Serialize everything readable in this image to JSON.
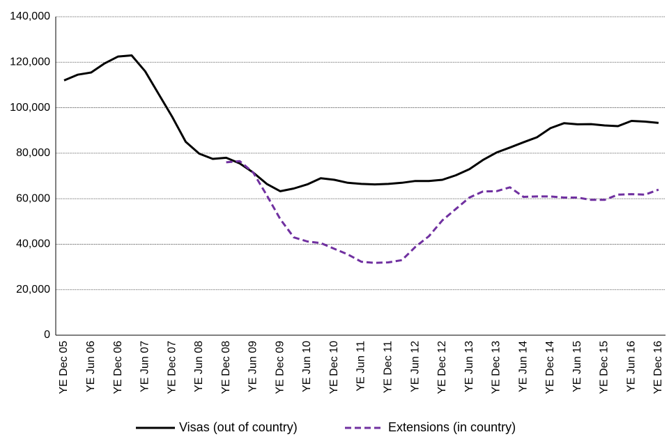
{
  "chart_data": {
    "type": "line",
    "categories": [
      "YE Dec 05",
      null,
      "YE Jun 06",
      null,
      "YE Dec 06",
      null,
      "YE Jun 07",
      null,
      "YE Dec 07",
      null,
      "YE Jun 08",
      null,
      "YE Dec 08",
      null,
      "YE Jun 09",
      null,
      "YE Dec 09",
      null,
      "YE Jun 10",
      null,
      "YE Dec 10",
      null,
      "YE Jun 11",
      null,
      "YE Dec 11",
      null,
      "YE Jun 12",
      null,
      "YE Dec 12",
      null,
      "YE Jun 13",
      null,
      "YE Dec 13",
      null,
      "YE Jun 14",
      null,
      "YE Dec 14",
      null,
      "YE Jun 15",
      null,
      "YE Dec 15",
      null,
      "YE Jun 16",
      null,
      "YE Dec 16"
    ],
    "series": [
      {
        "name": "Visas (out of country)",
        "color": "#000000",
        "dashed": false,
        "values": [
          112000,
          114500,
          115500,
          119500,
          122500,
          123000,
          116000,
          106000,
          96000,
          85000,
          79800,
          77500,
          78000,
          75500,
          71500,
          66500,
          63300,
          64500,
          66300,
          69000,
          68300,
          67000,
          66500,
          66300,
          66500,
          67000,
          67800,
          67800,
          68300,
          70300,
          73000,
          77000,
          80300,
          82500,
          84800,
          87000,
          91000,
          93200,
          92700,
          92800,
          92200,
          91900,
          94200,
          93900,
          93300
        ]
      },
      {
        "name": "Extensions (in country)",
        "color": "#7030a0",
        "dashed": true,
        "values": [
          null,
          null,
          null,
          null,
          null,
          null,
          null,
          null,
          null,
          null,
          null,
          null,
          76000,
          76500,
          71500,
          61500,
          51000,
          43000,
          41200,
          40500,
          38000,
          35500,
          32300,
          31800,
          32000,
          33000,
          38800,
          43500,
          50500,
          55500,
          60500,
          63200,
          63300,
          65000,
          60800,
          61000,
          61000,
          60500,
          60500,
          59500,
          59500,
          61800,
          62000,
          61800,
          64000
        ]
      }
    ],
    "ylim": [
      0,
      140000
    ],
    "yticks": [
      0,
      {
        "value": 20000,
        "label": "20,000"
      },
      {
        "value": 40000,
        "label": "40,000"
      },
      {
        "value": 60000,
        "label": "60,000"
      },
      {
        "value": 80000,
        "label": "80,000"
      },
      {
        "value": 100000,
        "label": "100,000"
      },
      {
        "value": 120000,
        "label": "120,000"
      },
      {
        "value": 140000,
        "label": "140,000"
      }
    ],
    "grid": true,
    "legend": "bottom"
  }
}
